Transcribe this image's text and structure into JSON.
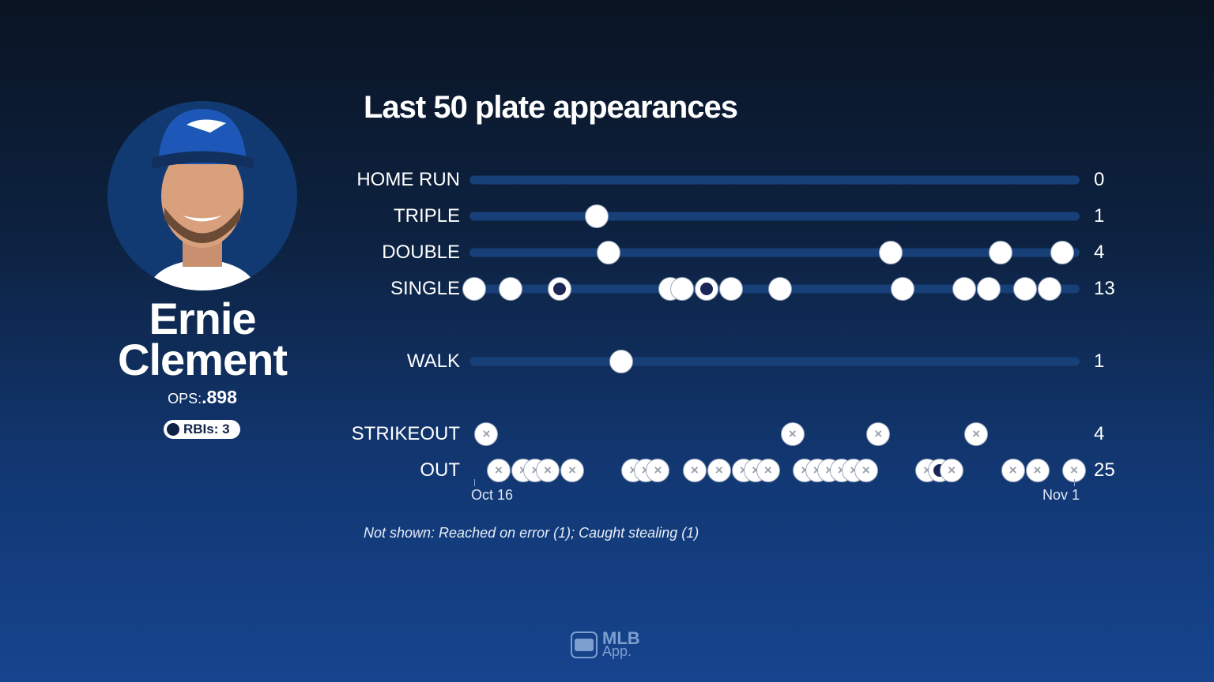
{
  "player": {
    "first_name": "Ernie",
    "last_name": "Clement",
    "ops_label": "OPS:",
    "ops_value": ".898",
    "rbi_label": "RBIs: 3"
  },
  "chart_data": {
    "type": "scatter",
    "title": "Last 50 plate appearances",
    "x_range": [
      1,
      50
    ],
    "x_tick_labels": [
      "Oct 16",
      "Nov 1"
    ],
    "rows": [
      {
        "label": "HOME RUN",
        "count": "0",
        "pa": [],
        "rbi_pa": [],
        "marker": "dot"
      },
      {
        "label": "TRIPLE",
        "count": "1",
        "pa": [
          11
        ],
        "rbi_pa": [],
        "marker": "dot"
      },
      {
        "label": "DOUBLE",
        "count": "4",
        "pa": [
          12,
          35,
          44,
          49
        ],
        "rbi_pa": [],
        "marker": "dot"
      },
      {
        "label": "SINGLE",
        "count": "13",
        "pa": [
          1,
          4,
          8,
          17,
          18,
          20,
          22,
          26,
          36,
          41,
          43,
          46,
          48
        ],
        "rbi_pa": [
          8,
          20
        ],
        "marker": "dot"
      },
      {
        "label": "WALK",
        "count": "1",
        "pa": [
          13
        ],
        "rbi_pa": [],
        "marker": "dot"
      },
      {
        "label": "STRIKEOUT",
        "count": "4",
        "pa": [
          2,
          27,
          34,
          42
        ],
        "rbi_pa": [],
        "marker": "x"
      },
      {
        "label": "OUT",
        "count": "25",
        "pa": [
          3,
          5,
          6,
          7,
          9,
          14,
          15,
          16,
          19,
          21,
          23,
          24,
          25,
          28,
          29,
          30,
          31,
          32,
          33,
          38,
          39,
          40,
          45,
          47,
          50
        ],
        "rbi_pa": [
          39
        ],
        "marker": "x"
      }
    ],
    "colors": {
      "track": "#173f78",
      "marker": "#ffffff",
      "rbi_center": "#1c2656"
    }
  },
  "note": "Not shown: Reached on error (1); Caught stealing (1)",
  "logo": {
    "line1": "MLB",
    "line2": "App."
  }
}
